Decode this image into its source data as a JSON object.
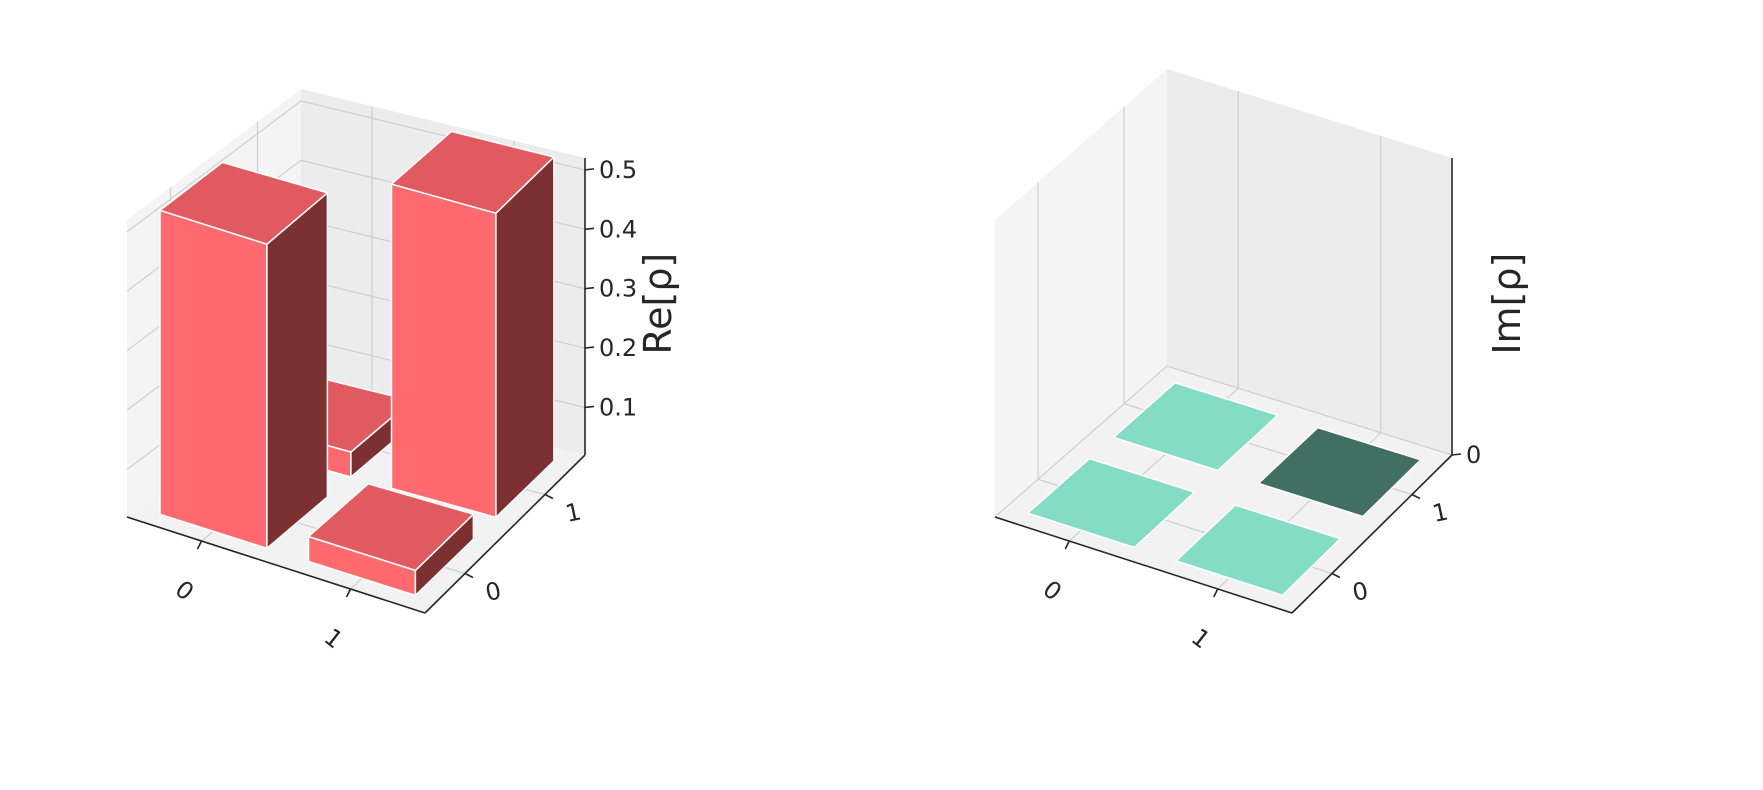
{
  "chart_data": [
    {
      "type": "bar3d",
      "zlabel": "Re[ρ]",
      "x_ticks": [
        "0",
        "1"
      ],
      "y_ticks": [
        "0",
        "1"
      ],
      "z_ticks": [
        "0.1",
        "0.2",
        "0.3",
        "0.4",
        "0.5"
      ],
      "zlim": [
        0.02,
        0.52
      ],
      "matrix": [
        [
          0.5,
          0.03
        ],
        [
          0.03,
          0.5
        ]
      ],
      "colors": {
        "top": "#e05a60",
        "front": "#ff6a6e",
        "side": "#7d3032"
      }
    },
    {
      "type": "bar3d",
      "zlabel": "Im[ρ]",
      "x_ticks": [
        "0",
        "1"
      ],
      "y_ticks": [
        "0",
        "1"
      ],
      "z_ticks": [
        "0"
      ],
      "zlim": [
        0,
        1
      ],
      "matrix": [
        [
          0,
          0
        ],
        [
          0,
          0
        ]
      ],
      "tile_colors": [
        [
          "#84dcc6",
          "#84dcc6"
        ],
        [
          "#84dcc6",
          "#416f64"
        ]
      ]
    }
  ]
}
